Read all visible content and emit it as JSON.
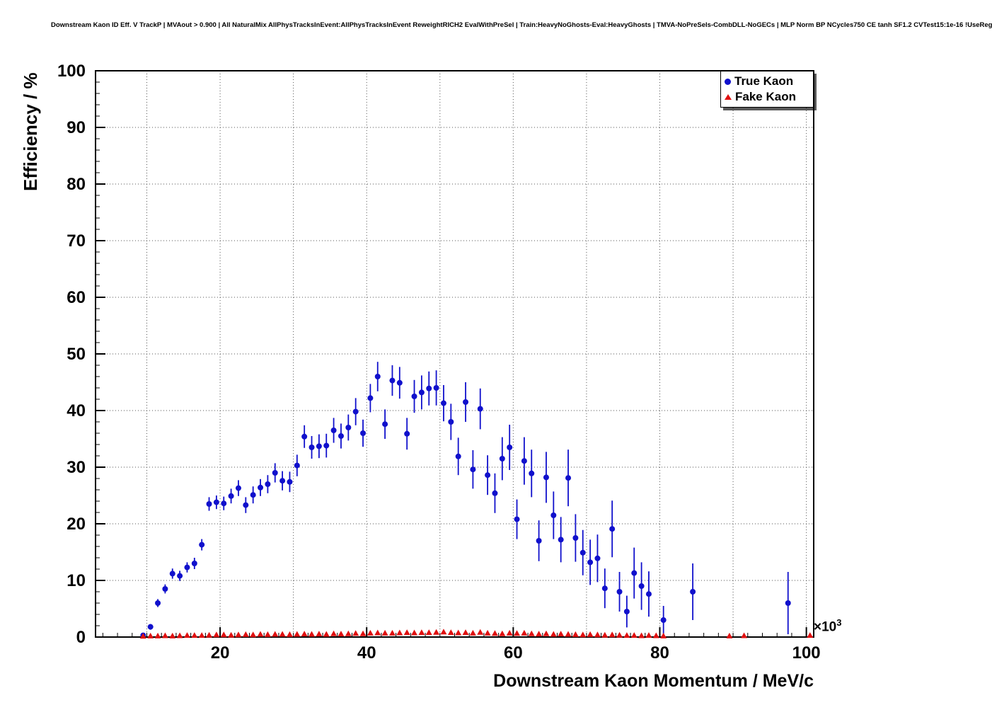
{
  "chart_data": {
    "type": "scatter",
    "title": "Downstream Kaon ID Eff. V TrackP | MVAout > 0.900 | All NaturalMix AllPhysTracksInEvent:AllPhysTracksInEvent ReweightRICH2 EvalWithPreSel | Train:HeavyNoGhosts-Eval:HeavyGhosts | TMVA-NoPreSels-CombDLL-NoGECs | MLP Norm BP NCycles750 CE tanh SF1.2 CVTest15:1e-16 !UseReg",
    "xlabel": "Downstream Kaon Momentum / MeV/c",
    "ylabel": "Efficiency / %",
    "x_exponent": {
      "base": "×10",
      "power": "3"
    },
    "xlim": [
      3,
      101
    ],
    "ylim": [
      0,
      100
    ],
    "x_ticks": [
      20,
      40,
      60,
      80,
      100
    ],
    "y_ticks": [
      0,
      10,
      20,
      30,
      40,
      50,
      60,
      70,
      80,
      90,
      100
    ],
    "grid": true,
    "grid_style": {
      "color": "#555555",
      "dash": "1,3"
    },
    "frame_color": "#000000",
    "legend": {
      "position": "top-right",
      "entries": [
        {
          "label": "True Kaon",
          "marker": "circle",
          "color": "#1010cc"
        },
        {
          "label": "Fake Kaon",
          "marker": "triangle",
          "color": "#e01010"
        }
      ]
    },
    "series": [
      {
        "name": "True Kaon",
        "marker": "circle",
        "color": "#1010cc",
        "points": [
          [
            9.5,
            0.3,
            0.3
          ],
          [
            10.5,
            1.8,
            0.5
          ],
          [
            11.5,
            6.0,
            0.7
          ],
          [
            12.5,
            8.5,
            0.8
          ],
          [
            13.5,
            11.2,
            0.9
          ],
          [
            14.5,
            10.8,
            0.9
          ],
          [
            15.5,
            12.3,
            0.9
          ],
          [
            16.5,
            13.0,
            1.0
          ],
          [
            17.5,
            16.3,
            1.0
          ],
          [
            18.5,
            23.5,
            1.2
          ],
          [
            19.5,
            23.8,
            1.2
          ],
          [
            20.5,
            23.6,
            1.2
          ],
          [
            21.5,
            24.9,
            1.3
          ],
          [
            22.5,
            26.3,
            1.4
          ],
          [
            23.5,
            23.3,
            1.4
          ],
          [
            24.5,
            25.1,
            1.5
          ],
          [
            25.5,
            26.4,
            1.5
          ],
          [
            26.5,
            27.0,
            1.6
          ],
          [
            27.5,
            29.0,
            1.7
          ],
          [
            28.5,
            27.6,
            1.7
          ],
          [
            29.5,
            27.4,
            1.8
          ],
          [
            30.5,
            30.3,
            1.9
          ],
          [
            31.5,
            35.4,
            2.0
          ],
          [
            32.5,
            33.5,
            2.0
          ],
          [
            33.5,
            33.7,
            2.1
          ],
          [
            34.5,
            33.8,
            2.1
          ],
          [
            35.5,
            36.5,
            2.2
          ],
          [
            36.5,
            35.5,
            2.2
          ],
          [
            37.5,
            37.0,
            2.3
          ],
          [
            38.5,
            39.8,
            2.4
          ],
          [
            39.5,
            36.0,
            2.4
          ],
          [
            40.5,
            42.2,
            2.5
          ],
          [
            41.5,
            46.0,
            2.6
          ],
          [
            42.5,
            37.6,
            2.6
          ],
          [
            43.5,
            45.3,
            2.7
          ],
          [
            44.5,
            44.9,
            2.8
          ],
          [
            45.5,
            35.9,
            2.8
          ],
          [
            46.5,
            42.5,
            2.9
          ],
          [
            47.5,
            43.2,
            3.0
          ],
          [
            48.5,
            43.9,
            3.0
          ],
          [
            49.5,
            44.0,
            3.1
          ],
          [
            50.5,
            41.3,
            3.2
          ],
          [
            51.5,
            38.0,
            3.2
          ],
          [
            52.5,
            31.9,
            3.3
          ],
          [
            53.5,
            41.5,
            3.5
          ],
          [
            54.5,
            29.6,
            3.4
          ],
          [
            55.5,
            40.3,
            3.6
          ],
          [
            56.5,
            28.6,
            3.5
          ],
          [
            57.5,
            25.4,
            3.5
          ],
          [
            58.5,
            31.5,
            3.8
          ],
          [
            59.5,
            33.5,
            4.0
          ],
          [
            60.5,
            20.8,
            3.5
          ],
          [
            61.5,
            31.1,
            4.2
          ],
          [
            62.5,
            28.9,
            4.2
          ],
          [
            63.5,
            17.0,
            3.6
          ],
          [
            64.5,
            28.2,
            4.5
          ],
          [
            65.5,
            21.5,
            4.2
          ],
          [
            66.5,
            17.2,
            4.0
          ],
          [
            67.5,
            28.1,
            5.0
          ],
          [
            68.5,
            17.5,
            4.2
          ],
          [
            69.5,
            14.9,
            4.0
          ],
          [
            70.5,
            13.2,
            4.0
          ],
          [
            71.5,
            13.9,
            4.2
          ],
          [
            72.5,
            8.6,
            3.5
          ],
          [
            73.5,
            19.1,
            5.0
          ],
          [
            74.5,
            8.0,
            3.5
          ],
          [
            75.5,
            4.5,
            2.8
          ],
          [
            76.5,
            11.3,
            4.5
          ],
          [
            77.5,
            9.0,
            4.2
          ],
          [
            78.5,
            7.6,
            4.0
          ],
          [
            80.5,
            3.0,
            2.5
          ],
          [
            84.5,
            8.0,
            5.0
          ],
          [
            97.5,
            6.0,
            5.5
          ]
        ]
      },
      {
        "name": "Fake Kaon",
        "marker": "triangle",
        "color": "#e01010",
        "yerr_all": 0.12,
        "points": [
          [
            9.5,
            0.15
          ],
          [
            10.5,
            0.2
          ],
          [
            11.5,
            0.2
          ],
          [
            12.5,
            0.25
          ],
          [
            13.5,
            0.2
          ],
          [
            14.5,
            0.25
          ],
          [
            15.5,
            0.3
          ],
          [
            16.5,
            0.3
          ],
          [
            17.5,
            0.3
          ],
          [
            18.5,
            0.35
          ],
          [
            19.5,
            0.4
          ],
          [
            20.5,
            0.4
          ],
          [
            21.5,
            0.35
          ],
          [
            22.5,
            0.4
          ],
          [
            23.5,
            0.45
          ],
          [
            24.5,
            0.4
          ],
          [
            25.5,
            0.5
          ],
          [
            26.5,
            0.45
          ],
          [
            27.5,
            0.5
          ],
          [
            28.5,
            0.5
          ],
          [
            29.5,
            0.45
          ],
          [
            30.5,
            0.5
          ],
          [
            31.5,
            0.55
          ],
          [
            32.5,
            0.5
          ],
          [
            33.5,
            0.55
          ],
          [
            34.5,
            0.5
          ],
          [
            35.5,
            0.6
          ],
          [
            36.5,
            0.55
          ],
          [
            37.5,
            0.6
          ],
          [
            38.5,
            0.65
          ],
          [
            39.5,
            0.6
          ],
          [
            40.5,
            0.7
          ],
          [
            41.5,
            0.75
          ],
          [
            42.5,
            0.7
          ],
          [
            43.5,
            0.7
          ],
          [
            44.5,
            0.75
          ],
          [
            45.5,
            0.8
          ],
          [
            46.5,
            0.75
          ],
          [
            47.5,
            0.8
          ],
          [
            48.5,
            0.8
          ],
          [
            49.5,
            0.85
          ],
          [
            50.5,
            0.9
          ],
          [
            51.5,
            0.8
          ],
          [
            52.5,
            0.75
          ],
          [
            53.5,
            0.8
          ],
          [
            54.5,
            0.7
          ],
          [
            55.5,
            0.85
          ],
          [
            56.5,
            0.7
          ],
          [
            57.5,
            0.65
          ],
          [
            58.5,
            0.6
          ],
          [
            59.5,
            0.7
          ],
          [
            60.5,
            0.65
          ],
          [
            61.5,
            0.7
          ],
          [
            62.5,
            0.6
          ],
          [
            63.5,
            0.55
          ],
          [
            64.5,
            0.6
          ],
          [
            65.5,
            0.5
          ],
          [
            66.5,
            0.55
          ],
          [
            67.5,
            0.5
          ],
          [
            68.5,
            0.45
          ],
          [
            69.5,
            0.4
          ],
          [
            70.5,
            0.45
          ],
          [
            71.5,
            0.4
          ],
          [
            72.5,
            0.35
          ],
          [
            73.5,
            0.4
          ],
          [
            74.5,
            0.35
          ],
          [
            75.5,
            0.3
          ],
          [
            76.5,
            0.3
          ],
          [
            77.5,
            0.25
          ],
          [
            78.5,
            0.3
          ],
          [
            79.5,
            0.25
          ],
          [
            80.5,
            0.2
          ],
          [
            89.5,
            0.2
          ],
          [
            91.5,
            0.25
          ],
          [
            100.5,
            0.3
          ]
        ]
      }
    ]
  }
}
